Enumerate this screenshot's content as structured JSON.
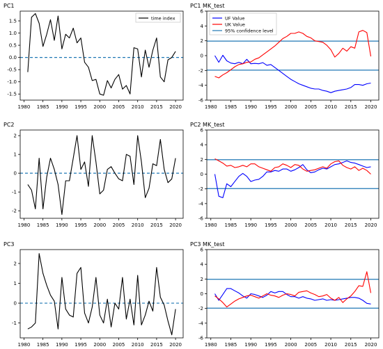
{
  "chart_data": [
    {
      "type": "line",
      "title": "PC1",
      "xlabel": "",
      "ylabel": "",
      "x": [
        1981,
        1982,
        1983,
        1984,
        1985,
        1986,
        1987,
        1988,
        1989,
        1990,
        1991,
        1992,
        1993,
        1994,
        1995,
        1996,
        1997,
        1998,
        1999,
        2000,
        2001,
        2002,
        2003,
        2004,
        2005,
        2006,
        2007,
        2008,
        2009,
        2010,
        2011,
        2012,
        2013,
        2014,
        2015,
        2016,
        2017,
        2018,
        2019,
        2020
      ],
      "xlim": [
        1979,
        2022
      ],
      "xticks": [
        1980,
        1985,
        1990,
        1995,
        2000,
        2005,
        2010,
        2015,
        2020
      ],
      "ylim": [
        -1.75,
        1.9
      ],
      "yticks": [
        -1.5,
        -1.0,
        -0.5,
        0.0,
        0.5,
        1.0,
        1.5
      ],
      "ytick_labels": [
        "-1.5",
        "-1.0",
        "-0.5",
        "0.0",
        "0.5",
        "1.0",
        "1.5"
      ],
      "legend": {
        "position": "top-right",
        "entries": [
          "time index"
        ]
      },
      "series": [
        {
          "name": "time index",
          "color": "#000000",
          "values": [
            -0.6,
            1.65,
            1.8,
            1.4,
            0.45,
            0.95,
            1.55,
            0.7,
            1.7,
            0.35,
            0.95,
            0.8,
            1.2,
            0.6,
            0.8,
            -0.2,
            -0.4,
            -0.95,
            -0.9,
            -1.5,
            -1.55,
            -0.95,
            -1.25,
            -0.9,
            -0.7,
            -1.3,
            -1.15,
            -1.5,
            0.4,
            0.35,
            -0.8,
            0.3,
            -0.4,
            0.3,
            0.8,
            -0.8,
            -1.0,
            -0.1,
            0.0,
            0.25
          ]
        }
      ],
      "reference_lines": [
        {
          "y": 0,
          "style": "dashed",
          "color": "#1f77b4"
        }
      ]
    },
    {
      "type": "line",
      "title": "PC1 MK_test",
      "xlabel": "",
      "ylabel": "",
      "x": [
        1981,
        1982,
        1983,
        1984,
        1985,
        1986,
        1987,
        1988,
        1989,
        1990,
        1991,
        1992,
        1993,
        1994,
        1995,
        1996,
        1997,
        1998,
        1999,
        2000,
        2001,
        2002,
        2003,
        2004,
        2005,
        2006,
        2007,
        2008,
        2009,
        2010,
        2011,
        2012,
        2013,
        2014,
        2015,
        2016,
        2017,
        2018,
        2019,
        2020
      ],
      "xlim": [
        1979,
        2022
      ],
      "xticks": [
        1980,
        1985,
        1990,
        1995,
        2000,
        2005,
        2010,
        2015,
        2020
      ],
      "ylim": [
        -6,
        6
      ],
      "yticks": [
        -6,
        -4,
        -2,
        0,
        2,
        4,
        6
      ],
      "ytick_labels": [
        "-6",
        "-4",
        "-2",
        "0",
        "2",
        "4",
        "6"
      ],
      "legend": {
        "position": "top-left",
        "entries": [
          "UF Value",
          "UK Value",
          "95% confidence level"
        ]
      },
      "series": [
        {
          "name": "UF Value",
          "color": "#0000ff",
          "values": [
            0.0,
            -0.9,
            0.05,
            -0.7,
            -1.0,
            -1.1,
            -0.9,
            -1.1,
            -0.5,
            -1.1,
            -1.05,
            -1.1,
            -0.95,
            -1.3,
            -1.2,
            -1.6,
            -2.0,
            -2.4,
            -2.8,
            -3.2,
            -3.5,
            -3.8,
            -4.0,
            -4.2,
            -4.4,
            -4.5,
            -4.5,
            -4.7,
            -4.8,
            -5.0,
            -4.8,
            -4.7,
            -4.6,
            -4.5,
            -4.3,
            -3.9,
            -3.9,
            -4.0,
            -3.8,
            -3.7
          ]
        },
        {
          "name": "UK Value",
          "color": "#ff0000",
          "values": [
            -2.8,
            -3.0,
            -2.6,
            -2.3,
            -1.9,
            -1.5,
            -1.2,
            -1.1,
            -0.9,
            -0.85,
            -0.5,
            -0.3,
            0.1,
            0.5,
            0.9,
            1.3,
            1.8,
            2.3,
            2.6,
            3.0,
            3.0,
            3.2,
            3.0,
            2.6,
            2.4,
            2.0,
            1.9,
            1.8,
            1.4,
            0.8,
            -0.2,
            0.3,
            1.0,
            0.6,
            1.2,
            1.0,
            3.2,
            3.4,
            3.1,
            -0.1
          ]
        }
      ],
      "reference_lines": [
        {
          "y": 1.96,
          "name": "95% confidence level",
          "color": "#1f77b4"
        },
        {
          "y": -1.96,
          "color": "#1f77b4"
        }
      ]
    },
    {
      "type": "line",
      "title": "PC2",
      "xlabel": "",
      "ylabel": "",
      "x": [
        1981,
        1982,
        1983,
        1984,
        1985,
        1986,
        1987,
        1988,
        1989,
        1990,
        1991,
        1992,
        1993,
        1994,
        1995,
        1996,
        1997,
        1998,
        1999,
        2000,
        2001,
        2002,
        2003,
        2004,
        2005,
        2006,
        2007,
        2008,
        2009,
        2010,
        2011,
        2012,
        2013,
        2014,
        2015,
        2016,
        2017,
        2018,
        2019,
        2020
      ],
      "xlim": [
        1979,
        2022
      ],
      "xticks": [
        1980,
        1985,
        1990,
        1995,
        2000,
        2005,
        2010,
        2015,
        2020
      ],
      "ylim": [
        -2.4,
        2.3
      ],
      "yticks": [
        -2,
        -1,
        0,
        1,
        2
      ],
      "ytick_labels": [
        "-2",
        "-1",
        "0",
        "1",
        "2"
      ],
      "series": [
        {
          "name": "",
          "color": "#000000",
          "values": [
            -0.6,
            -0.9,
            -1.9,
            0.8,
            -1.9,
            -0.2,
            0.8,
            0.2,
            -0.6,
            -2.2,
            -0.4,
            -0.4,
            0.8,
            2.0,
            0.2,
            0.6,
            -0.7,
            2.0,
            0.6,
            -1.1,
            -0.9,
            0.2,
            0.35,
            0.0,
            -0.3,
            -0.4,
            1.0,
            0.9,
            -0.6,
            2.0,
            0.6,
            -1.3,
            -0.8,
            0.5,
            0.4,
            1.8,
            0.2,
            -0.5,
            -0.3,
            0.8
          ]
        }
      ],
      "reference_lines": [
        {
          "y": 0,
          "style": "dashed",
          "color": "#1f77b4"
        }
      ]
    },
    {
      "type": "line",
      "title": "PC2 MK_test",
      "xlabel": "",
      "ylabel": "",
      "x": [
        1981,
        1982,
        1983,
        1984,
        1985,
        1986,
        1987,
        1988,
        1989,
        1990,
        1991,
        1992,
        1993,
        1994,
        1995,
        1996,
        1997,
        1998,
        1999,
        2000,
        2001,
        2002,
        2003,
        2004,
        2005,
        2006,
        2007,
        2008,
        2009,
        2010,
        2011,
        2012,
        2013,
        2014,
        2015,
        2016,
        2017,
        2018,
        2019,
        2020
      ],
      "xlim": [
        1979,
        2022
      ],
      "xticks": [
        1980,
        1985,
        1990,
        1995,
        2000,
        2005,
        2010,
        2015,
        2020
      ],
      "ylim": [
        -6,
        6
      ],
      "yticks": [
        -6,
        -4,
        -2,
        0,
        2,
        4,
        6
      ],
      "ytick_labels": [
        "-6",
        "-4",
        "-2",
        "0",
        "2",
        "4",
        "6"
      ],
      "series": [
        {
          "name": "UF Value",
          "color": "#0000ff",
          "values": [
            0.0,
            -3.0,
            -3.2,
            -1.3,
            -1.7,
            -1.0,
            -0.3,
            0.1,
            -0.3,
            -1.0,
            -0.8,
            -0.7,
            -0.3,
            0.3,
            0.3,
            0.5,
            0.4,
            0.7,
            0.7,
            0.4,
            0.6,
            0.9,
            1.3,
            0.6,
            0.2,
            0.3,
            0.6,
            0.8,
            0.7,
            1.0,
            1.3,
            1.4,
            1.6,
            1.8,
            1.6,
            1.5,
            1.3,
            1.1,
            0.9,
            1.0
          ]
        },
        {
          "name": "UK Value",
          "color": "#ff0000",
          "values": [
            2.1,
            1.8,
            1.5,
            1.1,
            1.2,
            0.9,
            1.0,
            1.2,
            1.0,
            1.4,
            1.4,
            1.0,
            0.8,
            0.6,
            0.4,
            0.9,
            1.0,
            1.4,
            1.2,
            0.9,
            1.3,
            1.2,
            0.7,
            0.4,
            0.5,
            0.6,
            0.8,
            1.0,
            0.8,
            1.4,
            1.7,
            1.8,
            1.2,
            0.9,
            0.7,
            1.0,
            0.5,
            0.8,
            0.5,
            0.0
          ]
        }
      ],
      "reference_lines": [
        {
          "y": 1.96,
          "color": "#1f77b4"
        },
        {
          "y": -1.96,
          "color": "#1f77b4"
        }
      ]
    },
    {
      "type": "line",
      "title": "PC3",
      "xlabel": "",
      "ylabel": "",
      "x": [
        1981,
        1982,
        1983,
        1984,
        1985,
        1986,
        1987,
        1988,
        1989,
        1990,
        1991,
        1992,
        1993,
        1994,
        1995,
        1996,
        1997,
        1998,
        1999,
        2000,
        2001,
        2002,
        2003,
        2004,
        2005,
        2006,
        2007,
        2008,
        2009,
        2010,
        2011,
        2012,
        2013,
        2014,
        2015,
        2016,
        2017,
        2018,
        2019,
        2020
      ],
      "xlim": [
        1979,
        2022
      ],
      "xticks": [
        1980,
        1985,
        1990,
        1995,
        2000,
        2005,
        2010,
        2015,
        2020
      ],
      "ylim": [
        -1.75,
        2.7
      ],
      "yticks": [
        -1,
        0,
        1,
        2
      ],
      "ytick_labels": [
        "-1",
        "0",
        "1",
        "2"
      ],
      "series": [
        {
          "name": "",
          "color": "#000000",
          "values": [
            -1.3,
            -1.2,
            -1.0,
            2.5,
            1.5,
            0.9,
            0.4,
            0.1,
            -1.3,
            1.3,
            -0.3,
            -0.6,
            -0.7,
            1.5,
            1.8,
            -0.5,
            -1.0,
            -0.2,
            1.3,
            -0.6,
            -1.0,
            0.2,
            -1.2,
            0.0,
            -0.3,
            1.3,
            -0.8,
            0.2,
            -1.1,
            1.4,
            -1.1,
            -0.6,
            0.1,
            -0.4,
            1.8,
            0.3,
            -0.1,
            -0.9,
            -1.6,
            -0.3
          ]
        }
      ],
      "reference_lines": [
        {
          "y": 0,
          "style": "dashed",
          "color": "#1f77b4"
        }
      ]
    },
    {
      "type": "line",
      "title": "PC3 MK_test",
      "xlabel": "",
      "ylabel": "",
      "x": [
        1981,
        1982,
        1983,
        1984,
        1985,
        1986,
        1987,
        1988,
        1989,
        1990,
        1991,
        1992,
        1993,
        1994,
        1995,
        1996,
        1997,
        1998,
        1999,
        2000,
        2001,
        2002,
        2003,
        2004,
        2005,
        2006,
        2007,
        2008,
        2009,
        2010,
        2011,
        2012,
        2013,
        2014,
        2015,
        2016,
        2017,
        2018,
        2019,
        2020
      ],
      "xlim": [
        1979,
        2022
      ],
      "xticks": [
        1980,
        1985,
        1990,
        1995,
        2000,
        2005,
        2010,
        2015,
        2020
      ],
      "ylim": [
        -6,
        6
      ],
      "yticks": [
        -6,
        -4,
        -2,
        0,
        2,
        4,
        6
      ],
      "ytick_labels": [
        "-6",
        "-4",
        "-2",
        "0",
        "2",
        "4",
        "6"
      ],
      "series": [
        {
          "name": "UF Value",
          "color": "#0000ff",
          "values": [
            0.0,
            -0.9,
            -0.1,
            0.7,
            0.7,
            0.4,
            0.1,
            -0.3,
            -0.6,
            0.0,
            -0.1,
            -0.3,
            -0.5,
            -0.2,
            0.3,
            0.1,
            0.3,
            0.3,
            -0.1,
            -0.4,
            -0.4,
            -0.6,
            -0.4,
            -0.6,
            -0.7,
            -0.9,
            -0.8,
            -0.7,
            -0.9,
            -0.8,
            -0.9,
            -0.8,
            -0.7,
            -0.6,
            -0.5,
            -0.5,
            -0.6,
            -0.9,
            -1.3,
            -1.4
          ]
        },
        {
          "name": "UK Value",
          "color": "#ff0000",
          "values": [
            -0.3,
            -0.7,
            -1.2,
            -1.8,
            -1.4,
            -1.0,
            -0.7,
            -0.5,
            -0.3,
            -0.2,
            -0.4,
            -0.6,
            -0.3,
            0.0,
            -0.2,
            -0.3,
            -0.5,
            -0.2,
            0.0,
            -0.1,
            -0.3,
            0.2,
            0.3,
            0.4,
            0.1,
            -0.1,
            -0.4,
            -0.3,
            -0.1,
            -0.6,
            -0.9,
            -0.5,
            -1.2,
            -0.7,
            -0.3,
            0.3,
            1.1,
            1.0,
            3.0,
            0.1
          ]
        }
      ],
      "reference_lines": [
        {
          "y": 1.96,
          "color": "#1f77b4"
        },
        {
          "y": -1.96,
          "color": "#1f77b4"
        }
      ]
    }
  ]
}
